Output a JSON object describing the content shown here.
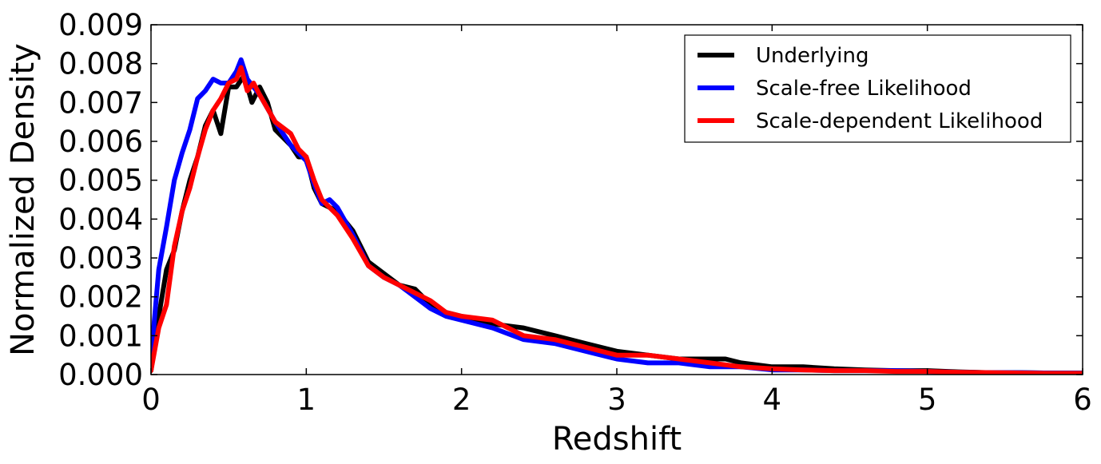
{
  "chart_data": {
    "type": "line",
    "xlabel": "Redshift",
    "ylabel": "Normalized Density",
    "xlim": [
      0,
      6
    ],
    "ylim": [
      0,
      0.009
    ],
    "x_ticks": [
      "0",
      "1",
      "2",
      "3",
      "4",
      "5",
      "6"
    ],
    "y_ticks": [
      "0.000",
      "0.001",
      "0.002",
      "0.003",
      "0.004",
      "0.005",
      "0.006",
      "0.007",
      "0.008",
      "0.009"
    ],
    "grid": false,
    "legend_position": "top-right",
    "series": [
      {
        "name": "Underlying",
        "color": "#000000",
        "points": [
          [
            0,
            0.0001
          ],
          [
            0.05,
            0.0015
          ],
          [
            0.1,
            0.0027
          ],
          [
            0.15,
            0.0032
          ],
          [
            0.2,
            0.0042
          ],
          [
            0.25,
            0.005
          ],
          [
            0.3,
            0.0056
          ],
          [
            0.35,
            0.0064
          ],
          [
            0.4,
            0.0068
          ],
          [
            0.45,
            0.0062
          ],
          [
            0.5,
            0.0074
          ],
          [
            0.55,
            0.0074
          ],
          [
            0.6,
            0.0077
          ],
          [
            0.65,
            0.007
          ],
          [
            0.7,
            0.0074
          ],
          [
            0.75,
            0.007
          ],
          [
            0.8,
            0.0063
          ],
          [
            0.85,
            0.0061
          ],
          [
            0.9,
            0.0059
          ],
          [
            0.95,
            0.0056
          ],
          [
            1.0,
            0.0056
          ],
          [
            1.05,
            0.0048
          ],
          [
            1.1,
            0.0044
          ],
          [
            1.2,
            0.0042
          ],
          [
            1.3,
            0.0037
          ],
          [
            1.4,
            0.0029
          ],
          [
            1.5,
            0.0026
          ],
          [
            1.6,
            0.0023
          ],
          [
            1.7,
            0.0022
          ],
          [
            1.8,
            0.0018
          ],
          [
            1.9,
            0.0016
          ],
          [
            2.0,
            0.0015
          ],
          [
            2.2,
            0.0013
          ],
          [
            2.4,
            0.0012
          ],
          [
            2.6,
            0.001
          ],
          [
            2.8,
            0.0008
          ],
          [
            3.0,
            0.0006
          ],
          [
            3.2,
            0.0005
          ],
          [
            3.4,
            0.0004
          ],
          [
            3.6,
            0.0004
          ],
          [
            3.7,
            0.0004
          ],
          [
            3.8,
            0.0003
          ],
          [
            4.0,
            0.0002
          ],
          [
            4.2,
            0.0002
          ],
          [
            4.4,
            0.00015
          ],
          [
            4.6,
            0.00012
          ],
          [
            4.8,
            0.0001
          ],
          [
            5.0,
            0.0001
          ],
          [
            5.2,
            7e-05
          ],
          [
            5.4,
            5e-05
          ],
          [
            5.6,
            5e-05
          ],
          [
            5.8,
            4e-05
          ],
          [
            6.0,
            4e-05
          ]
        ]
      },
      {
        "name": "Scale-free Likelihood",
        "color": "#0000ff",
        "points": [
          [
            0,
            0.0004
          ],
          [
            0.05,
            0.0027
          ],
          [
            0.1,
            0.0038
          ],
          [
            0.15,
            0.005
          ],
          [
            0.2,
            0.0057
          ],
          [
            0.25,
            0.0063
          ],
          [
            0.3,
            0.0071
          ],
          [
            0.35,
            0.0073
          ],
          [
            0.4,
            0.0076
          ],
          [
            0.45,
            0.0075
          ],
          [
            0.5,
            0.0075
          ],
          [
            0.55,
            0.0078
          ],
          [
            0.58,
            0.0081
          ],
          [
            0.62,
            0.0076
          ],
          [
            0.7,
            0.0072
          ],
          [
            0.8,
            0.0065
          ],
          [
            0.9,
            0.0059
          ],
          [
            1.0,
            0.0055
          ],
          [
            1.05,
            0.0049
          ],
          [
            1.1,
            0.0044
          ],
          [
            1.15,
            0.0045
          ],
          [
            1.2,
            0.0043
          ],
          [
            1.3,
            0.0036
          ],
          [
            1.4,
            0.0028
          ],
          [
            1.5,
            0.0025
          ],
          [
            1.6,
            0.0023
          ],
          [
            1.7,
            0.002
          ],
          [
            1.8,
            0.0017
          ],
          [
            1.9,
            0.0015
          ],
          [
            2.0,
            0.0014
          ],
          [
            2.2,
            0.0012
          ],
          [
            2.4,
            0.0009
          ],
          [
            2.6,
            0.0008
          ],
          [
            2.8,
            0.0006
          ],
          [
            3.0,
            0.0004
          ],
          [
            3.2,
            0.0003
          ],
          [
            3.4,
            0.0003
          ],
          [
            3.6,
            0.0002
          ],
          [
            3.8,
            0.0002
          ],
          [
            4.0,
            0.00012
          ],
          [
            4.2,
            0.00012
          ],
          [
            4.4,
            0.0001
          ],
          [
            4.6,
            0.0001
          ],
          [
            4.8,
            0.0001
          ],
          [
            5.0,
            8e-05
          ],
          [
            5.2,
            6e-05
          ],
          [
            5.4,
            5e-05
          ],
          [
            5.6,
            5e-05
          ],
          [
            5.8,
            4e-05
          ],
          [
            6.0,
            4e-05
          ]
        ]
      },
      {
        "name": "Scale-dependent Likelihood",
        "color": "#ff0000",
        "points": [
          [
            0,
            0.0001
          ],
          [
            0.05,
            0.0012
          ],
          [
            0.1,
            0.0018
          ],
          [
            0.15,
            0.0033
          ],
          [
            0.2,
            0.0042
          ],
          [
            0.25,
            0.0048
          ],
          [
            0.3,
            0.0056
          ],
          [
            0.35,
            0.0063
          ],
          [
            0.4,
            0.0068
          ],
          [
            0.45,
            0.0071
          ],
          [
            0.5,
            0.0075
          ],
          [
            0.55,
            0.0076
          ],
          [
            0.58,
            0.0079
          ],
          [
            0.62,
            0.0073
          ],
          [
            0.66,
            0.0075
          ],
          [
            0.7,
            0.0072
          ],
          [
            0.8,
            0.0065
          ],
          [
            0.9,
            0.0062
          ],
          [
            0.95,
            0.0058
          ],
          [
            1.0,
            0.0056
          ],
          [
            1.05,
            0.005
          ],
          [
            1.1,
            0.0045
          ],
          [
            1.2,
            0.0041
          ],
          [
            1.3,
            0.0035
          ],
          [
            1.4,
            0.0028
          ],
          [
            1.5,
            0.0025
          ],
          [
            1.6,
            0.0023
          ],
          [
            1.7,
            0.0021
          ],
          [
            1.8,
            0.0019
          ],
          [
            1.9,
            0.0016
          ],
          [
            2.0,
            0.0015
          ],
          [
            2.2,
            0.0014
          ],
          [
            2.4,
            0.001
          ],
          [
            2.6,
            0.0009
          ],
          [
            2.8,
            0.0007
          ],
          [
            3.0,
            0.0005
          ],
          [
            3.2,
            0.0005
          ],
          [
            3.4,
            0.0004
          ],
          [
            3.6,
            0.0003
          ],
          [
            3.8,
            0.0002
          ],
          [
            4.0,
            0.00015
          ],
          [
            4.2,
            0.00012
          ],
          [
            4.4,
            0.0001
          ],
          [
            4.6,
            0.0001
          ],
          [
            4.8,
            8e-05
          ],
          [
            5.0,
            8e-05
          ],
          [
            5.2,
            6e-05
          ],
          [
            5.4,
            5e-05
          ],
          [
            5.6,
            4e-05
          ],
          [
            5.8,
            3e-05
          ],
          [
            6.0,
            3e-05
          ]
        ]
      }
    ]
  }
}
